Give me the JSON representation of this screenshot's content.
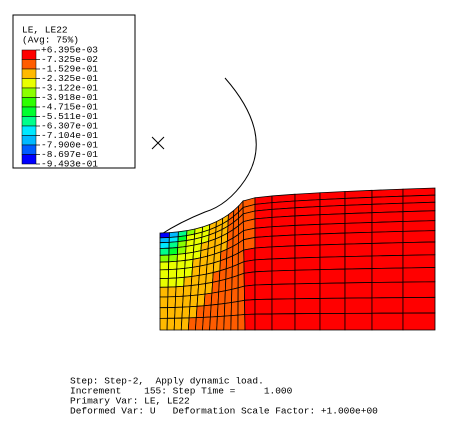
{
  "legend": {
    "title": "LE, LE22",
    "subtitle": "(Avg: 75%)",
    "labels": [
      "+6.395e-03",
      "-7.325e-02",
      "-1.529e-01",
      "-2.325e-01",
      "-3.122e-01",
      "-3.918e-01",
      "-4.715e-01",
      "-5.511e-01",
      "-6.307e-01",
      "-7.104e-01",
      "-7.900e-01",
      "-8.697e-01",
      "-9.493e-01"
    ],
    "colors": [
      "#ff0000",
      "#ff5c00",
      "#ffb900",
      "#e9ff00",
      "#8bff00",
      "#2eff00",
      "#00ff2e",
      "#00ff8b",
      "#00e8ff",
      "#00b9ff",
      "#005cff",
      "#0000ff"
    ]
  },
  "footer": {
    "lines": [
      "Step: Step-2,  Apply dynamic load.",
      "Increment    155: Step Time =     1.000",
      "Primary Var: LE, LE22",
      "Deformed Var: U   Deformation Scale Factor: +1.000e+00"
    ]
  }
}
